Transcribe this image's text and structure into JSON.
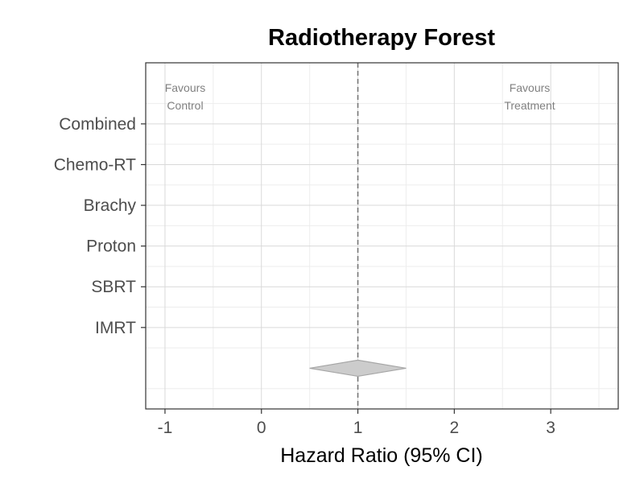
{
  "chart_data": {
    "type": "forest",
    "title": "Radiotherapy Forest",
    "xlabel": "Hazard Ratio (95% CI)",
    "ylabel": "",
    "xlim": [
      -1.2,
      3.7
    ],
    "x_ticks": [
      -1,
      0,
      1,
      2,
      3
    ],
    "reference_line": 1,
    "grid": true,
    "categories": [
      "Combined",
      "Chemo-RT",
      "Brachy",
      "Proton",
      "SBRT",
      "IMRT"
    ],
    "studies": [],
    "summary": {
      "estimate": 1.0,
      "lower": 0.5,
      "upper": 1.5
    },
    "annotations": {
      "left": [
        "Favours",
        "Control"
      ],
      "right": [
        "Favours",
        "Treatment"
      ]
    },
    "colors": {
      "summary_fill": "#cccccc",
      "summary_stroke": "#a6a6a6",
      "reference_line": "#777777",
      "grid_major": "#d9d9d9",
      "grid_minor": "#ededed",
      "panel_border": "#333333"
    }
  }
}
